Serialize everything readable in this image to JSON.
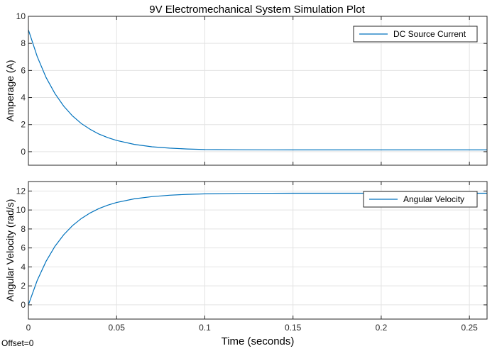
{
  "title": "9V Electromechanical System Simulation Plot",
  "offset_label": "Offset=0",
  "colors": {
    "line": "#0072bd",
    "grid": "#e3e3e3",
    "axes": "#262626"
  },
  "chart_data": [
    {
      "type": "line",
      "title": "9V Electromechanical System Simulation Plot",
      "ylabel": "Amperage (A)",
      "xlabel": "",
      "xlim": [
        0,
        0.26
      ],
      "ylim": [
        -1,
        10
      ],
      "xticks": [
        0,
        0.05,
        0.1,
        0.15,
        0.2,
        0.25
      ],
      "xticklabels": [],
      "yticks": [
        0,
        2,
        4,
        6,
        8,
        10
      ],
      "yticklabels": [
        "0",
        "2",
        "4",
        "6",
        "8",
        "10"
      ],
      "grid": true,
      "legend": "top-right",
      "series": [
        {
          "name": "DC Source Current",
          "x": [
            0,
            0.005,
            0.01,
            0.015,
            0.02,
            0.025,
            0.03,
            0.035,
            0.04,
            0.045,
            0.05,
            0.06,
            0.07,
            0.08,
            0.09,
            0.1,
            0.12,
            0.15,
            0.2,
            0.26
          ],
          "y": [
            9.0,
            7.03,
            5.49,
            4.3,
            3.37,
            2.64,
            2.08,
            1.65,
            1.3,
            1.04,
            0.83,
            0.54,
            0.36,
            0.26,
            0.2,
            0.16,
            0.14,
            0.13,
            0.13,
            0.13
          ]
        }
      ]
    },
    {
      "type": "line",
      "title": "",
      "ylabel": "Angular Velocity (rad/s)",
      "xlabel": "Time (seconds)",
      "xlim": [
        0,
        0.26
      ],
      "ylim": [
        -1.5,
        13
      ],
      "xticks": [
        0,
        0.05,
        0.1,
        0.15,
        0.2,
        0.25
      ],
      "xticklabels": [
        "0",
        "0.05",
        "0.1",
        "0.15",
        "0.2",
        "0.25"
      ],
      "yticks": [
        0,
        2,
        4,
        6,
        8,
        10,
        12
      ],
      "yticklabels": [
        "0",
        "2",
        "4",
        "6",
        "8",
        "10",
        "12"
      ],
      "grid": true,
      "legend": "top-right",
      "series": [
        {
          "name": "Angular Velocity",
          "x": [
            0,
            0.005,
            0.01,
            0.015,
            0.02,
            0.025,
            0.03,
            0.035,
            0.04,
            0.045,
            0.05,
            0.06,
            0.07,
            0.08,
            0.09,
            0.1,
            0.12,
            0.15,
            0.2,
            0.26
          ],
          "y": [
            0,
            2.57,
            4.58,
            6.16,
            7.39,
            8.35,
            9.1,
            9.69,
            10.15,
            10.51,
            10.79,
            11.18,
            11.41,
            11.56,
            11.65,
            11.7,
            11.75,
            11.77,
            11.77,
            11.77
          ]
        }
      ]
    }
  ]
}
